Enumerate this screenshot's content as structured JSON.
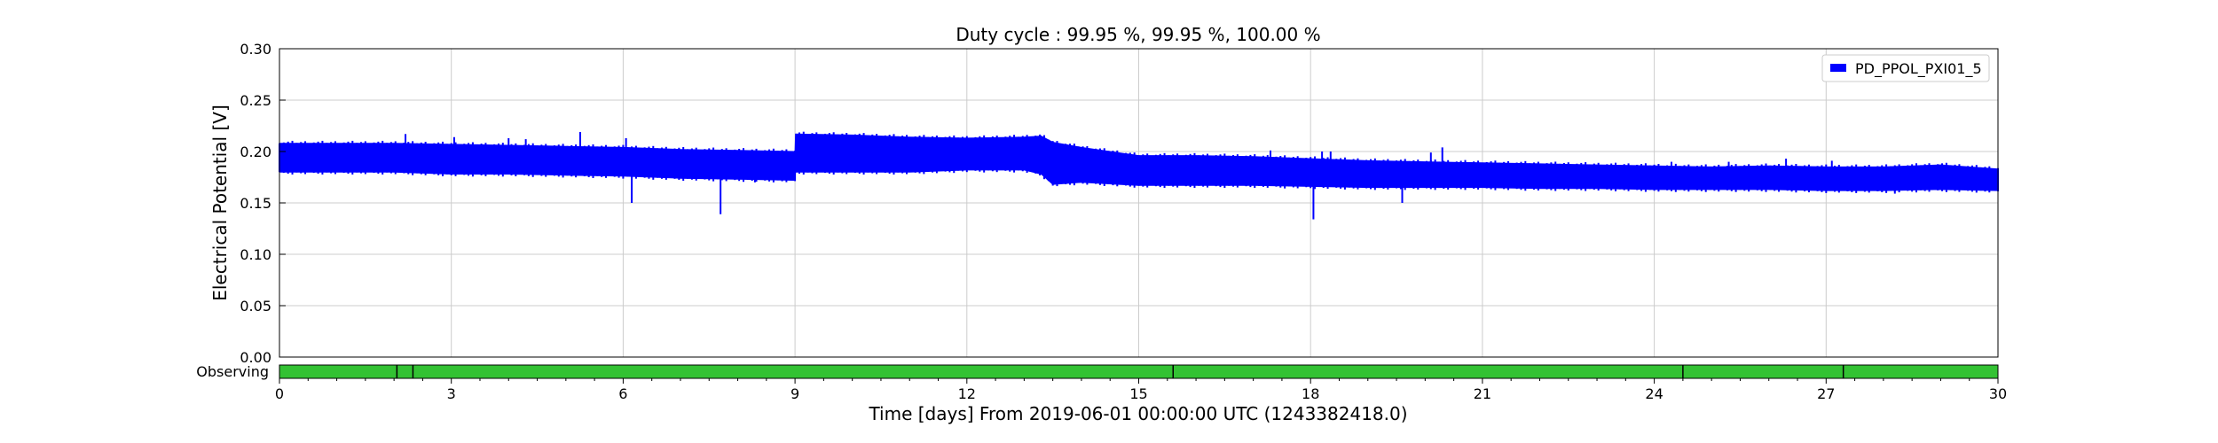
{
  "chart_data": {
    "type": "area",
    "title": "Duty cycle : 99.95 %, 99.95 %, 100.00 %",
    "xlabel": "Time [days] From 2019-06-01 00:00:00 UTC (1243382418.0)",
    "ylabel": "Electrical Potential [V]",
    "xlim": [
      0,
      30
    ],
    "ylim": [
      0,
      0.3
    ],
    "x_ticks": [
      "0",
      "3",
      "6",
      "9",
      "12",
      "15",
      "18",
      "21",
      "24",
      "27",
      "30"
    ],
    "y_ticks": [
      "0.00",
      "0.05",
      "0.10",
      "0.15",
      "0.20",
      "0.25",
      "0.30"
    ],
    "grid": true,
    "legend_position": "top-right",
    "series": [
      {
        "name": "PD_PPOL_PXI01_5",
        "color": "#0000ff",
        "x": [
          0,
          1,
          2,
          3,
          4,
          5,
          6,
          7,
          8,
          9,
          9.01,
          10,
          11,
          12,
          13,
          13.3,
          13.5,
          14,
          15,
          16,
          17,
          18,
          19,
          20,
          21,
          22,
          23,
          24,
          25,
          26,
          27,
          28,
          29,
          30
        ],
        "upper": [
          0.208,
          0.208,
          0.208,
          0.207,
          0.206,
          0.205,
          0.204,
          0.202,
          0.201,
          0.2,
          0.217,
          0.216,
          0.214,
          0.213,
          0.214,
          0.215,
          0.209,
          0.204,
          0.196,
          0.196,
          0.195,
          0.193,
          0.191,
          0.19,
          0.189,
          0.188,
          0.187,
          0.186,
          0.185,
          0.186,
          0.185,
          0.185,
          0.187,
          0.183
        ],
        "lower": [
          0.18,
          0.18,
          0.18,
          0.178,
          0.178,
          0.177,
          0.176,
          0.174,
          0.173,
          0.172,
          0.18,
          0.18,
          0.18,
          0.182,
          0.182,
          0.178,
          0.168,
          0.17,
          0.167,
          0.167,
          0.167,
          0.166,
          0.165,
          0.165,
          0.165,
          0.164,
          0.164,
          0.163,
          0.163,
          0.163,
          0.162,
          0.162,
          0.163,
          0.162
        ]
      }
    ],
    "spikes": [
      {
        "x": 2.2,
        "y": 0.217
      },
      {
        "x": 3.05,
        "y": 0.214
      },
      {
        "x": 4.0,
        "y": 0.213
      },
      {
        "x": 4.3,
        "y": 0.212
      },
      {
        "x": 5.25,
        "y": 0.219
      },
      {
        "x": 6.05,
        "y": 0.213
      },
      {
        "x": 6.15,
        "y": 0.15
      },
      {
        "x": 7.7,
        "y": 0.139
      },
      {
        "x": 8.3,
        "y": 0.17
      },
      {
        "x": 17.3,
        "y": 0.201
      },
      {
        "x": 18.05,
        "y": 0.134
      },
      {
        "x": 18.2,
        "y": 0.2
      },
      {
        "x": 18.35,
        "y": 0.2
      },
      {
        "x": 19.6,
        "y": 0.15
      },
      {
        "x": 20.1,
        "y": 0.199
      },
      {
        "x": 20.3,
        "y": 0.204
      },
      {
        "x": 24.3,
        "y": 0.19
      },
      {
        "x": 25.3,
        "y": 0.19
      },
      {
        "x": 26.3,
        "y": 0.193
      },
      {
        "x": 27.1,
        "y": 0.191
      },
      {
        "x": 28.2,
        "y": 0.159
      }
    ],
    "segment_bar": {
      "label": "Observing",
      "color": "#33c233",
      "gaps_x": [
        2.05,
        2.33,
        15.6,
        24.5,
        27.3
      ]
    }
  }
}
